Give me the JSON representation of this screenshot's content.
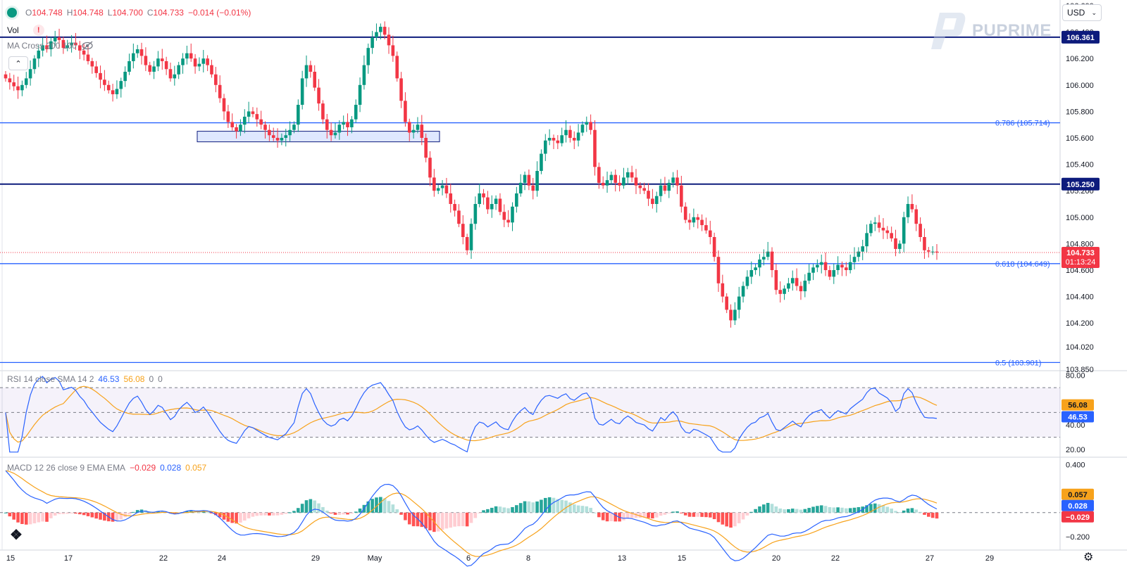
{
  "ohlc": {
    "o": "O",
    "o_val": "104.748",
    "h": "H",
    "h_val": "104.748",
    "l": "L",
    "l_val": "104.700",
    "c": "C",
    "c_val": "104.733",
    "chg": "−0.014 (−0.01%)"
  },
  "vol_label": "Vol",
  "ma_label": "MA Cross 200 100",
  "currency": "USD",
  "brand": "PUPRIME",
  "colors": {
    "up": "#089981",
    "down": "#f23645",
    "level": "#0d1b7c",
    "fib": "#2962ff",
    "rsi": "#2962ff",
    "rsi_ma": "#f7a21b",
    "macd": "#2962ff",
    "signal": "#f7a21b"
  },
  "icons": {
    "symbol": "status-dot-icon",
    "warning": "warning-icon",
    "eye": "eye-off-icon",
    "collapse": "chevron-up-icon",
    "brand": "puprime-logo-icon",
    "tradingview": "tradingview-logo-icon",
    "settings": "gear-icon"
  },
  "chart_data": [
    {
      "type": "candlestick",
      "title": "",
      "ylim": [
        103.85,
        106.6
      ],
      "y_ticks": [
        "106.600",
        "106.400",
        "106.200",
        "106.000",
        "105.800",
        "105.600",
        "105.400",
        "105.200",
        "105.000",
        "104.800",
        "104.600",
        "104.400",
        "104.200",
        "104.020",
        "103.850"
      ],
      "x_ticks": [
        "15",
        "17",
        "22",
        "24",
        "29",
        "May",
        "6",
        "8",
        "13",
        "15",
        "20",
        "22",
        "27",
        "29"
      ],
      "levels": [
        {
          "value": 106.361,
          "label": "106.361",
          "kind": "key"
        },
        {
          "value": 105.714,
          "label": "0.786 (105.714)",
          "kind": "fib"
        },
        {
          "value": 105.25,
          "label": "105.250",
          "kind": "key"
        },
        {
          "value": 104.649,
          "label": "0.618 (104.649)",
          "kind": "fib"
        },
        {
          "value": 103.901,
          "label": "0.5 (103.901)",
          "kind": "fib"
        }
      ],
      "last_price": {
        "value": 104.733,
        "label": "104.733",
        "countdown": "01:13:24"
      },
      "zone": {
        "from": 105.57,
        "to": 105.65
      },
      "close": [
        106.05,
        106.02,
        105.99,
        105.96,
        106.0,
        106.05,
        106.12,
        106.2,
        106.26,
        106.3,
        106.27,
        106.33,
        106.36,
        106.34,
        106.28,
        106.3,
        106.32,
        106.3,
        106.26,
        106.23,
        106.18,
        106.14,
        106.09,
        106.04,
        106.0,
        105.96,
        105.93,
        105.97,
        106.03,
        106.1,
        106.18,
        106.24,
        106.27,
        106.22,
        106.15,
        106.1,
        106.14,
        106.2,
        106.18,
        106.12,
        106.05,
        106.08,
        106.15,
        106.2,
        106.24,
        106.2,
        106.14,
        106.16,
        106.2,
        106.15,
        106.08,
        106.0,
        105.9,
        105.8,
        105.72,
        105.68,
        105.65,
        105.7,
        105.76,
        105.8,
        105.78,
        105.74,
        105.7,
        105.66,
        105.62,
        105.6,
        105.58,
        105.6,
        105.62,
        105.66,
        105.7,
        105.85,
        106.05,
        106.15,
        106.1,
        105.98,
        105.86,
        105.74,
        105.66,
        105.62,
        105.64,
        105.7,
        105.72,
        105.68,
        105.74,
        105.85,
        106.0,
        106.15,
        106.28,
        106.36,
        106.4,
        106.44,
        106.38,
        106.3,
        106.22,
        106.05,
        105.88,
        105.72,
        105.64,
        105.66,
        105.7,
        105.6,
        105.45,
        105.3,
        105.2,
        105.22,
        105.24,
        105.18,
        105.1,
        105.05,
        104.95,
        104.85,
        104.75,
        104.95,
        105.1,
        105.18,
        105.15,
        105.06,
        105.1,
        105.14,
        105.04,
        104.98,
        104.96,
        105.08,
        105.18,
        105.26,
        105.32,
        105.24,
        105.2,
        105.35,
        105.48,
        105.58,
        105.6,
        105.58,
        105.56,
        105.62,
        105.66,
        105.6,
        105.58,
        105.64,
        105.7,
        105.72,
        105.66,
        105.38,
        105.26,
        105.24,
        105.28,
        105.32,
        105.26,
        105.24,
        105.3,
        105.34,
        105.3,
        105.24,
        105.22,
        105.2,
        105.14,
        105.1,
        105.16,
        105.24,
        105.2,
        105.26,
        105.3,
        105.24,
        105.08,
        104.98,
        104.96,
        105.0,
        104.98,
        104.94,
        104.9,
        104.85,
        104.7,
        104.5,
        104.4,
        104.3,
        104.22,
        104.3,
        104.4,
        104.48,
        104.55,
        104.6,
        104.62,
        104.68,
        104.7,
        104.74,
        104.6,
        104.45,
        104.42,
        104.46,
        104.5,
        104.54,
        104.48,
        104.44,
        104.52,
        104.58,
        104.62,
        104.64,
        104.66,
        104.6,
        104.55,
        104.6,
        104.64,
        104.62,
        104.6,
        104.66,
        104.7,
        104.74,
        104.78,
        104.88,
        104.95,
        104.96,
        104.92,
        104.9,
        104.88,
        104.84,
        104.76,
        104.8,
        105.0,
        105.1,
        105.06,
        104.95,
        104.85,
        104.75,
        104.74,
        104.74,
        104.733
      ]
    },
    {
      "type": "line",
      "title": "RSI 14 close SMA 14 2",
      "values_display": {
        "rsi": "46.53",
        "sma": "56.08",
        "v3": "0",
        "v4": "0"
      },
      "ylim": [
        15,
        82
      ],
      "y_ticks": [
        "80.00",
        "40.00",
        "20.00"
      ],
      "bands": {
        "upper": 70,
        "middle": 50,
        "lower": 30
      },
      "last": {
        "rsi": 46.53,
        "sma": 56.08
      }
    },
    {
      "type": "bar",
      "title": "MACD 12 26 close 9 EMA EMA",
      "values_display": {
        "hist": "−0.029",
        "macd": "0.028",
        "signal": "0.057"
      },
      "ylim": [
        -0.3,
        0.45
      ],
      "y_ticks": [
        "0.400",
        "−0.200"
      ],
      "last": {
        "hist": -0.029,
        "macd": 0.028,
        "signal": 0.057
      }
    }
  ]
}
